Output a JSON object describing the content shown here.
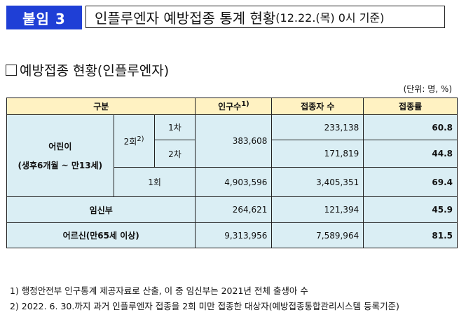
{
  "badge": "붙임 3",
  "title": {
    "main": "인플루엔자 예방접종 통계 현황",
    "sub": "(12.22.(목) 0시 기준)"
  },
  "section_title": "예방접종 현황(인플루엔자)",
  "unit": "(단위: 명, %)",
  "table": {
    "headers": {
      "category": "구분",
      "population": "인구수",
      "population_sup": "1)",
      "vaccinated": "접종자 수",
      "rate": "접종률"
    },
    "children": {
      "label_line1": "어린이",
      "label_line2": "(생후6개월 ~ 만13세)",
      "two_dose_label": "2회",
      "two_dose_sup": "2)",
      "dose1_label": "1차",
      "dose2_label": "2차",
      "two_dose_population": "383,608",
      "dose1_vaccinated": "233,138",
      "dose1_rate": "60.8",
      "dose2_vaccinated": "171,819",
      "dose2_rate": "44.8",
      "one_dose_label": "1회",
      "one_dose_population": "4,903,596",
      "one_dose_vaccinated": "3,405,351",
      "one_dose_rate": "69.4"
    },
    "pregnant": {
      "label": "임신부",
      "population": "264,621",
      "vaccinated": "121,394",
      "rate": "45.9"
    },
    "elderly": {
      "label": "어르신(만65세 이상)",
      "population": "9,313,956",
      "vaccinated": "7,589,964",
      "rate": "81.5"
    }
  },
  "notes": [
    "1) 행정안전부 인구통계 제공자료로 산출, 이 중 임신부는 2021년 전체 출생아 수",
    "2) 2022. 6. 30.까지 과거 인플루엔자 접종을 2회 미만 접종한 대상자(예방접종통합관리시스템 등록기준)"
  ]
}
